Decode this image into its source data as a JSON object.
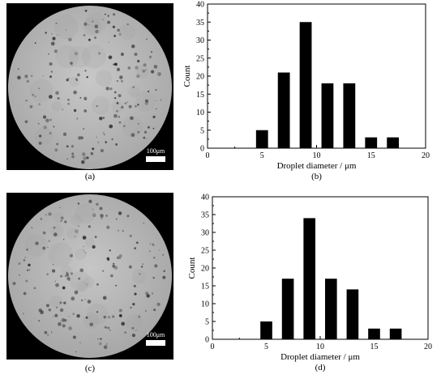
{
  "panels": {
    "a": {
      "label": "(a)",
      "scale_bar": "100μm"
    },
    "b": {
      "label": "(b)"
    },
    "c": {
      "label": "(c)",
      "scale_bar": "100μm"
    },
    "d": {
      "label": "(d)"
    }
  },
  "colors": {
    "bar": "#000000",
    "micrograph_bg": "#bdbdbd",
    "frame": "#000000"
  },
  "chart_data": [
    {
      "type": "bar",
      "panel": "b",
      "title": "",
      "xlabel": "Droplet diameter / μm",
      "ylabel": "Count",
      "xlim": [
        0,
        20
      ],
      "ylim": [
        0,
        40
      ],
      "xticks": [
        0,
        5,
        10,
        15,
        20
      ],
      "yticks": [
        0,
        5,
        10,
        15,
        20,
        25,
        30,
        35,
        40
      ],
      "x": [
        5,
        7,
        9,
        11,
        13,
        15,
        17
      ],
      "values": [
        5,
        21,
        35,
        18,
        18,
        3,
        3
      ],
      "grid": false
    },
    {
      "type": "bar",
      "panel": "d",
      "title": "",
      "xlabel": "Droplet diameter / μm",
      "ylabel": "Count",
      "xlim": [
        0,
        20
      ],
      "ylim": [
        0,
        40
      ],
      "xticks": [
        0,
        5,
        10,
        15,
        20
      ],
      "yticks": [
        0,
        5,
        10,
        15,
        20,
        25,
        30,
        35,
        40
      ],
      "x": [
        5,
        7,
        9,
        11,
        13,
        15,
        17
      ],
      "values": [
        5,
        17,
        34,
        17,
        14,
        3,
        3
      ],
      "grid": false
    }
  ]
}
